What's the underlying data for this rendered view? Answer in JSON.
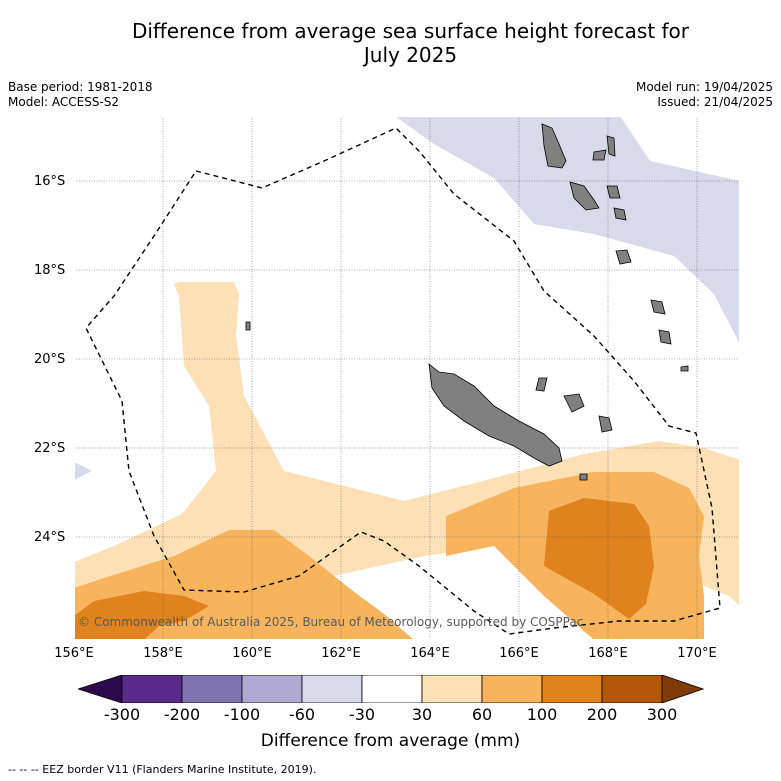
{
  "title_line1": "Difference from average sea surface height forecast for",
  "title_line2": "July 2025",
  "meta": {
    "base_period": "Base period: 1981-2018",
    "model": "Model: ACCESS-S2",
    "model_run": "Model run: 19/04/2025",
    "issued": "Issued: 21/04/2025"
  },
  "axes": {
    "lat_labels": [
      "16°S",
      "18°S",
      "20°S",
      "22°S",
      "24°S"
    ],
    "lon_labels": [
      "156°E",
      "158°E",
      "160°E",
      "162°E",
      "164°E",
      "166°E",
      "168°E",
      "170°E"
    ]
  },
  "copyright": "© Commonwealth of Australia 2025, Bureau of Meteorology, supported by COSPPac",
  "colorbar": {
    "title": "Difference from average (mm)",
    "ticks": [
      "-300",
      "-200",
      "-100",
      "-60",
      "-30",
      "30",
      "60",
      "100",
      "200",
      "300"
    ],
    "colors": [
      "#2d0a4e",
      "#5a2a8a",
      "#8073b0",
      "#b0a9d2",
      "#d9d9ec",
      "#ffffff",
      "#fde0b5",
      "#f8b45c",
      "#e0821d",
      "#b35806",
      "#7f3b08"
    ]
  },
  "legend_note": "--  --  -- EEZ border V11 (Flanders Marine Institute, 2019)."
}
